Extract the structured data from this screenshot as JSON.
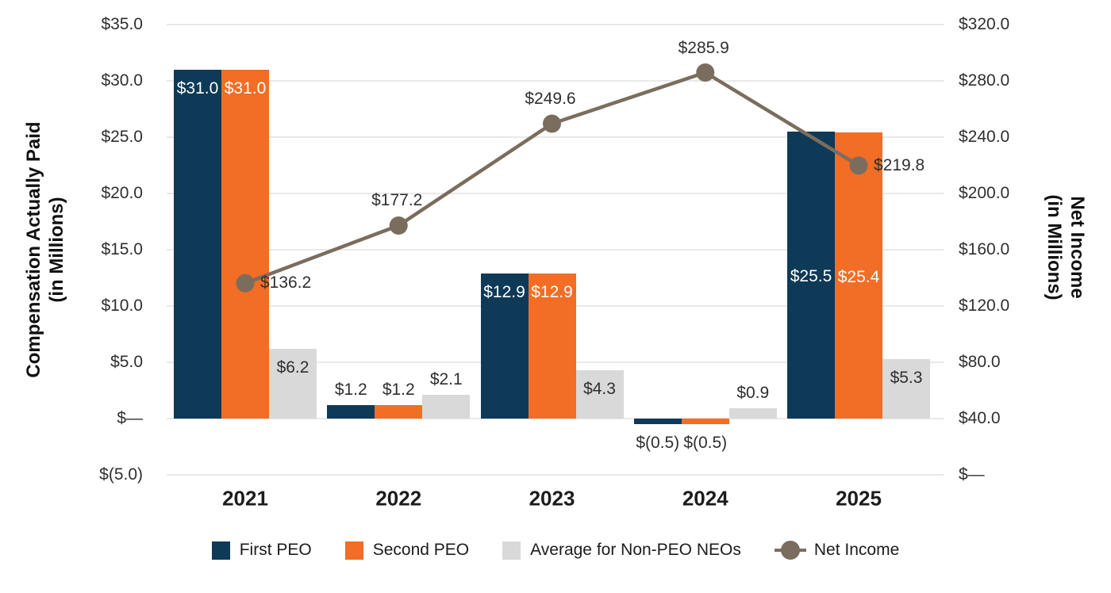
{
  "chart_data": {
    "type": "bar+line combo",
    "categories": [
      "2021",
      "2022",
      "2023",
      "2024",
      "2025"
    ],
    "bar_series": [
      {
        "name": "First PEO",
        "color": "#0E3A58",
        "axis": "left",
        "values": [
          31.0,
          1.2,
          12.9,
          -0.5,
          25.5
        ],
        "labels": [
          "$31.0",
          "$1.2",
          "$12.9",
          "$(0.5)",
          "$25.5"
        ],
        "label_pos": [
          "inside",
          "above",
          "inside",
          "below",
          "inside-mid"
        ],
        "label_colors": [
          "#FFFFFF",
          "#2F2F2F",
          "#FFFFFF",
          "#2F2F2F",
          "#FFFFFF"
        ]
      },
      {
        "name": "Second PEO",
        "color": "#F26D25",
        "axis": "left",
        "values": [
          31.0,
          1.2,
          12.9,
          -0.5,
          25.4
        ],
        "labels": [
          "$31.0",
          "$1.2",
          "$12.9",
          "$(0.5)",
          "$25.4"
        ],
        "label_pos": [
          "inside",
          "above",
          "inside",
          "below",
          "inside-mid"
        ],
        "label_colors": [
          "#FFFFFF",
          "#2F2F2F",
          "#FFFFFF",
          "#2F2F2F",
          "#FFFFFF"
        ]
      },
      {
        "name": "Average for Non-PEO NEOs",
        "color": "#D9D9D9",
        "axis": "left",
        "values": [
          6.2,
          2.1,
          4.3,
          0.9,
          5.3
        ],
        "labels": [
          "$6.2",
          "$2.1",
          "$4.3",
          "$0.9",
          "$5.3"
        ],
        "label_pos": [
          "inside",
          "above",
          "inside",
          "above",
          "inside"
        ],
        "label_colors": [
          "#2F2F2F",
          "#2F2F2F",
          "#2F2F2F",
          "#2F2F2F",
          "#2F2F2F"
        ]
      }
    ],
    "line_series": {
      "name": "Net Income",
      "color": "#7B6D5E",
      "axis": "right",
      "values": [
        136.2,
        177.2,
        249.6,
        285.9,
        219.8
      ],
      "labels": [
        "$136.2",
        "$177.2",
        "$249.6",
        "$285.9",
        "$219.8"
      ],
      "label_pos": [
        "right",
        "above",
        "above",
        "above",
        "right"
      ]
    },
    "left_axis": {
      "title1": "Compensation Actually Paid",
      "title2": "(in Millions)",
      "tick_labels": [
        "$35.0",
        "$30.0",
        "$25.0",
        "$20.0",
        "$15.0",
        "$10.0",
        "$5.0",
        "$—",
        "$(5.0)"
      ],
      "tick_values": [
        35,
        30,
        25,
        20,
        15,
        10,
        5,
        0,
        -5
      ]
    },
    "right_axis": {
      "title1": "Net Income",
      "title2": "(in Millions)",
      "tick_labels": [
        "$320.0",
        "$280.0",
        "$240.0",
        "$200.0",
        "$160.0",
        "$120.0",
        "$80.0",
        "$40.0",
        "$—"
      ],
      "tick_values": [
        320,
        280,
        240,
        200,
        160,
        120,
        80,
        40,
        0
      ]
    },
    "legend": [
      {
        "label": "First PEO",
        "swatch": "square",
        "color": "#0E3A58"
      },
      {
        "label": "Second PEO",
        "swatch": "square",
        "color": "#F26D25"
      },
      {
        "label": "Average for Non-PEO NEOs",
        "swatch": "square",
        "color": "#D9D9D9"
      },
      {
        "label": "Net Income",
        "swatch": "line-dot",
        "color": "#7B6D5E"
      }
    ],
    "grid_color": "#E9E9E9",
    "layout_hints": {
      "grid": "horizontal on",
      "legend_position": "bottom center"
    }
  }
}
